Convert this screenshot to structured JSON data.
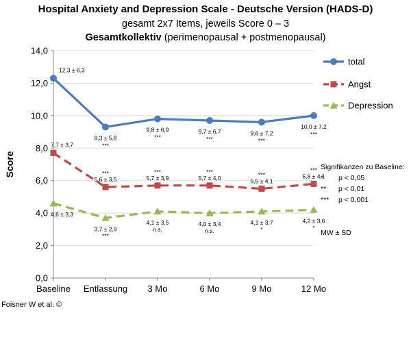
{
  "chart_data": {
    "type": "line",
    "title": "Hospital Anxiety and Depression Scale - Deutsche Version (HADS-D)",
    "subtitle": "gesamt 2x7 Items, jeweils Score 0 – 3",
    "subtitle2_bold": "Gesamtkollektiv",
    "subtitle2_rest": "(perimenopausal + postmenopausal)",
    "ylabel": "Score",
    "xlabel": "",
    "ylim": [
      0,
      14
    ],
    "yticks": [
      "0,0",
      "2,0",
      "4,0",
      "6,0",
      "8,0",
      "10,0",
      "12,0",
      "14,0"
    ],
    "categories": [
      "Baseline",
      "Entlassung",
      "3 Mo",
      "6 Mo",
      "9 Mo",
      "12 Mo"
    ],
    "series": [
      {
        "name": "total",
        "color": "#4a7ebb",
        "marker": "circle",
        "dash": "solid",
        "values": [
          12.3,
          9.3,
          9.8,
          9.7,
          9.6,
          10.0
        ],
        "labels": [
          "12,3 ± 6,3",
          "9,3 ±  5,8",
          "9,8 ± 6,9",
          "9,7 ± 6,7",
          "9,6 ± 7,2",
          "10,0 ± 7,2"
        ],
        "sig": [
          "",
          "***",
          "***",
          "***",
          "***",
          "***"
        ]
      },
      {
        "name": "Angst",
        "color": "#be4b48",
        "marker": "square",
        "dash": "dashed",
        "values": [
          7.7,
          5.6,
          5.7,
          5.7,
          5.5,
          5.8
        ],
        "labels": [
          "7,7 ± 3,7",
          "5,6 ± 3,5",
          "5,7 ± 3,9",
          "5,7 ± 4,0",
          "5,5 ± 4,1",
          "5,8 ± 4,1"
        ],
        "sig": [
          "",
          "***",
          "***",
          "***",
          "***",
          "***"
        ]
      },
      {
        "name": "Depression",
        "color": "#98b954",
        "marker": "triangle",
        "dash": "dashed",
        "values": [
          4.6,
          3.7,
          4.1,
          4.0,
          4.1,
          4.2
        ],
        "labels": [
          "4,6 ± 3,3",
          "3,7 ± 2,9",
          "4,1 ± 3,5",
          "4,0 ± 3,4",
          "4,1 ± 3,7",
          "4,2 ± 3,6"
        ],
        "sig": [
          "",
          "***",
          "n.s.",
          "n.s.",
          "*",
          "*"
        ]
      }
    ],
    "legend_position": "right",
    "significance": {
      "title": "Signifikanzen zu Baseline:",
      "rows": [
        {
          "sym": "*",
          "text": "p < 0,05"
        },
        {
          "sym": "**",
          "text": "p < 0,01"
        },
        {
          "sym": "***",
          "text": "p < 0,001"
        }
      ]
    },
    "note": "MW ± SD",
    "credit": "Foisner W et al. ©"
  }
}
